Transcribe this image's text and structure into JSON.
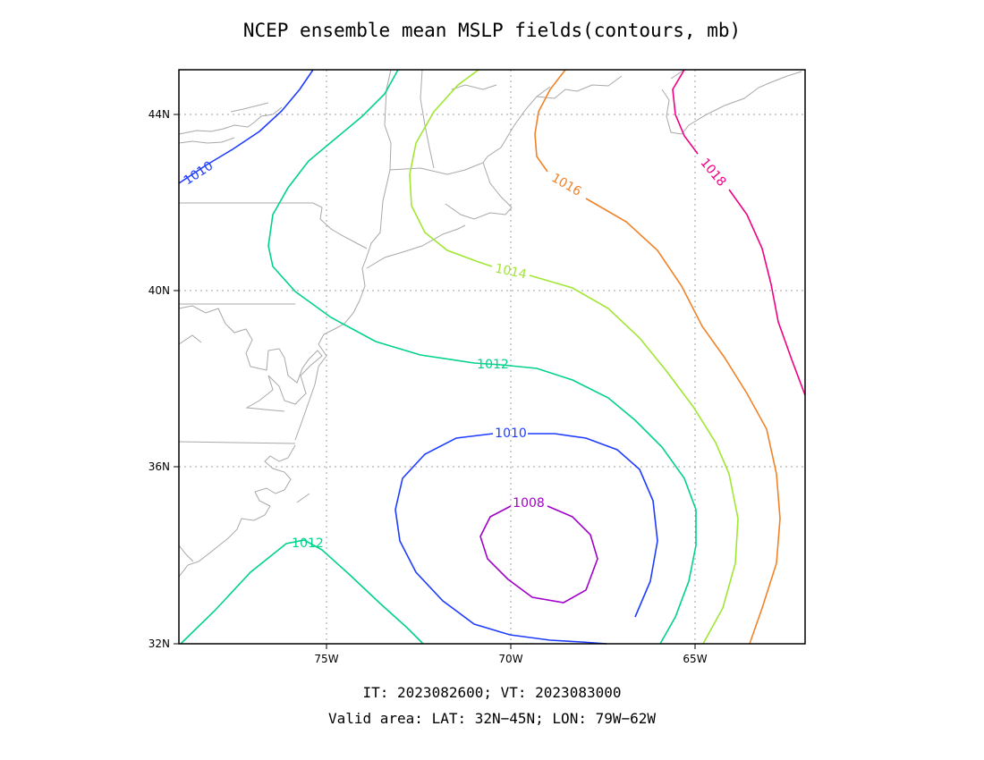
{
  "title": "NCEP ensemble mean MSLP fields(contours, mb)",
  "footer": {
    "line1": "IT: 2023082600; VT: 2023083000",
    "line2": "Valid area: LAT: 32N−45N; LON: 79W−62W"
  },
  "axes": {
    "lat_ticks": [
      {
        "value": 44,
        "label": "44N"
      },
      {
        "value": 40,
        "label": "40N"
      },
      {
        "value": 36,
        "label": "36N"
      },
      {
        "value": 32,
        "label": "32N"
      }
    ],
    "lon_ticks": [
      {
        "value": -75,
        "label": "75W"
      },
      {
        "value": -70,
        "label": "70W"
      },
      {
        "value": -65,
        "label": "65W"
      }
    ]
  },
  "contours": [
    {
      "level": 1008,
      "label": "1008",
      "color": "#a000c8"
    },
    {
      "level": 1010,
      "label": "1010",
      "color": "#1e3cff"
    },
    {
      "level": 1012,
      "label": "1012",
      "color": "#00d28c"
    },
    {
      "level": 1014,
      "label": "1014",
      "color": "#a0e632"
    },
    {
      "level": 1016,
      "label": "1016",
      "color": "#f08228"
    },
    {
      "level": 1018,
      "label": "1018",
      "color": "#f00082"
    }
  ]
}
